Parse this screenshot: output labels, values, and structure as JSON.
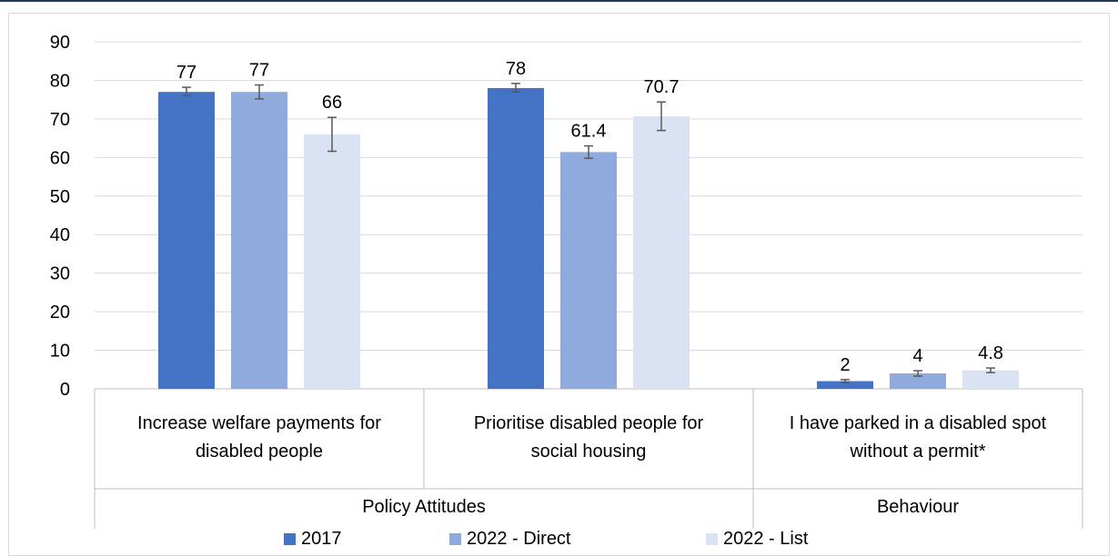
{
  "chart_data": {
    "type": "bar",
    "groups": [
      {
        "label": "Policy Attitudes",
        "categories": [
          "Increase welfare payments for disabled people",
          "Prioritise disabled people for social housing"
        ]
      },
      {
        "label": "Behaviour",
        "categories": [
          "I have parked in a disabled spot without a permit*"
        ]
      }
    ],
    "categories": [
      [
        "Increase welfare payments for",
        "disabled people"
      ],
      [
        "Prioritise disabled people for",
        "social housing"
      ],
      [
        "I have parked in a disabled spot",
        "without a permit*"
      ]
    ],
    "series": [
      {
        "name": "2017",
        "color": "#4472c4",
        "values": [
          77,
          78,
          2
        ],
        "labels": [
          "77",
          "78",
          "2"
        ],
        "err_low": [
          76.0,
          77.0,
          1.6
        ],
        "err_high": [
          78.2,
          79.2,
          2.4
        ]
      },
      {
        "name": "2022 - Direct",
        "color": "#8faadc",
        "values": [
          77,
          61.4,
          4
        ],
        "labels": [
          "77",
          "61.4",
          "4"
        ],
        "err_low": [
          75.2,
          59.8,
          3.3
        ],
        "err_high": [
          78.8,
          63.0,
          4.7
        ]
      },
      {
        "name": "2022 - List",
        "color": "#dae3f3",
        "values": [
          66,
          70.7,
          4.8
        ],
        "labels": [
          "66",
          "70.7",
          "4.8"
        ],
        "err_low": [
          61.6,
          67.0,
          4.2
        ],
        "err_high": [
          70.4,
          74.4,
          5.4
        ]
      }
    ],
    "ylim": [
      0,
      90
    ],
    "yticks": [
      0,
      10,
      20,
      30,
      40,
      50,
      60,
      70,
      80,
      90
    ],
    "grid": true,
    "legend_position": "bottom"
  }
}
